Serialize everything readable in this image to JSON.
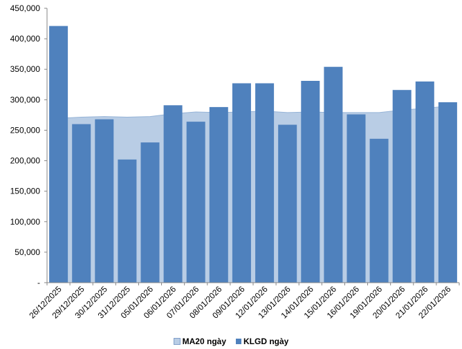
{
  "chart_data": {
    "type": "bar",
    "title": "",
    "xlabel": "",
    "ylabel": "",
    "ylim": [
      0,
      450000
    ],
    "yticks": [
      {
        "value": 0,
        "label": "-"
      },
      {
        "value": 50000,
        "label": "50,000"
      },
      {
        "value": 100000,
        "label": "100,000"
      },
      {
        "value": 150000,
        "label": "150,000"
      },
      {
        "value": 200000,
        "label": "200,000"
      },
      {
        "value": 250000,
        "label": "250,000"
      },
      {
        "value": 300000,
        "label": "300,000"
      },
      {
        "value": 350000,
        "label": "350,000"
      },
      {
        "value": 400000,
        "label": "400,000"
      },
      {
        "value": 450000,
        "label": "450,000"
      }
    ],
    "grid": false,
    "legend_position": "bottom",
    "categories": [
      "26/12/2025",
      "29/12/2025",
      "30/12/2025",
      "31/12/2025",
      "05/01/2026",
      "06/01/2026",
      "07/01/2026",
      "08/01/2026",
      "09/01/2026",
      "12/01/2026",
      "13/01/2026",
      "14/01/2026",
      "15/01/2026",
      "16/01/2026",
      "19/01/2026",
      "20/01/2026",
      "21/01/2026",
      "22/01/2026"
    ],
    "series": [
      {
        "name": "MA20 ngày",
        "type": "area",
        "color": "#b9cde5",
        "values": [
          269500,
          271500,
          272500,
          271500,
          272500,
          277000,
          280000,
          279000,
          280000,
          281500,
          279000,
          280000,
          279000,
          279000,
          279000,
          283000,
          286000,
          289500
        ]
      },
      {
        "name": "KLGD ngày",
        "type": "bar",
        "color": "#4f81bd",
        "values": [
          421000,
          260000,
          268000,
          202000,
          230000,
          291000,
          264000,
          288000,
          327000,
          327000,
          259000,
          331000,
          354000,
          276000,
          236000,
          316000,
          330000,
          296000
        ]
      }
    ]
  }
}
